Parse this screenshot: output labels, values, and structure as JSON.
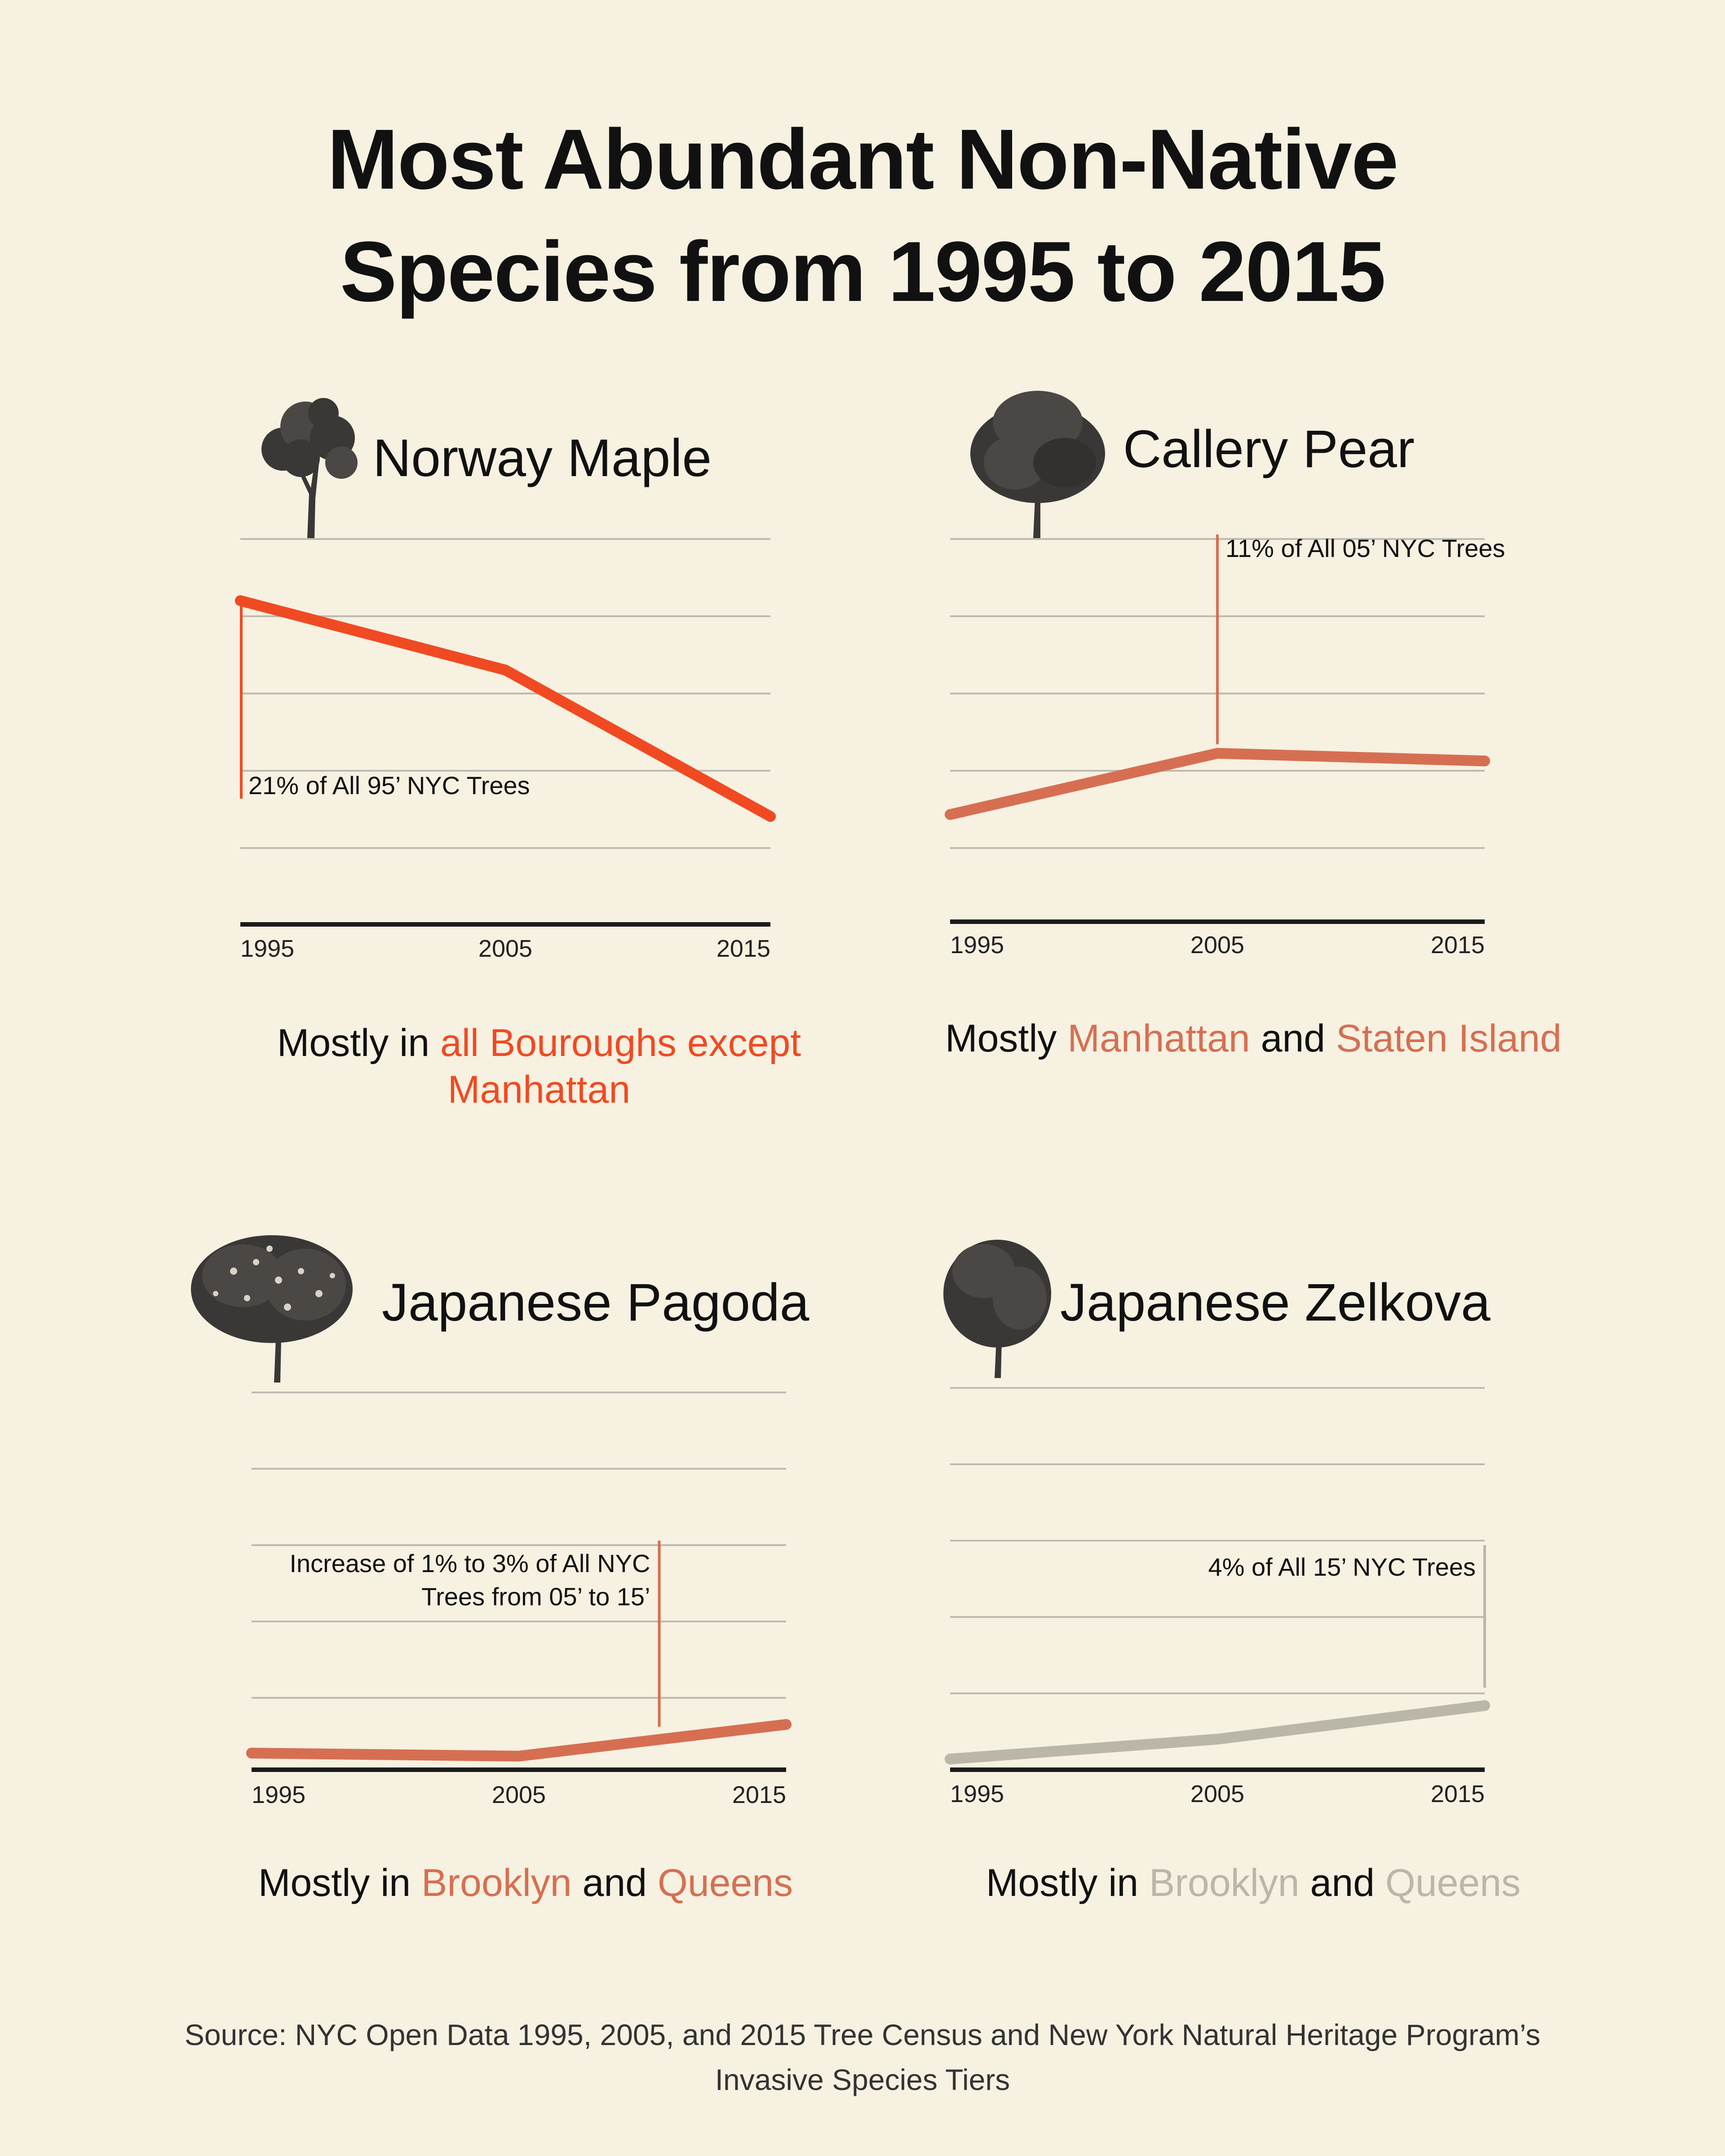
{
  "title": {
    "line1": "Most Abundant Non-Native",
    "line2": "Species from 1995 to 2015"
  },
  "source": {
    "line1": "Source: NYC Open Data 1995, 2005, and 2015 Tree Census and New York Natural Heritage Program’s",
    "line2": "Invasive Species Tiers"
  },
  "colors": {
    "background": "#f6f1e1",
    "grid": "#bdbab2",
    "axis": "#1a1a1a",
    "norway": "#f04a23",
    "callery": "#d66f52",
    "pagoda": "#d66f52",
    "zelkova": "#bab7a8",
    "tree": "#3a3836"
  },
  "panels": [
    {
      "id": "norway",
      "name": "Norway Maple",
      "icon": "tree-silhouette-icon",
      "summary": [
        {
          "text": "Mostly in ",
          "highlight": false
        },
        {
          "text": "all Bouroughs except Manhattan",
          "highlight": true
        }
      ]
    },
    {
      "id": "callery",
      "name": "Callery Pear",
      "icon": "tree-silhouette-icon",
      "summary": [
        {
          "text": "Mostly ",
          "highlight": false
        },
        {
          "text": "Manhattan",
          "highlight": true
        },
        {
          "text": " and ",
          "highlight": false
        },
        {
          "text": "Staten Island",
          "highlight": true
        }
      ]
    },
    {
      "id": "pagoda",
      "name": "Japanese Pagoda",
      "icon": "tree-silhouette-icon",
      "summary": [
        {
          "text": "Mostly in ",
          "highlight": false
        },
        {
          "text": "Brooklyn",
          "highlight": true
        },
        {
          "text": " and ",
          "highlight": false
        },
        {
          "text": "Queens",
          "highlight": true
        }
      ]
    },
    {
      "id": "zelkova",
      "name": "Japanese Zelkova",
      "icon": "tree-silhouette-icon",
      "summary": [
        {
          "text": "Mostly in ",
          "highlight": false
        },
        {
          "text": "Brooklyn",
          "highlight": true
        },
        {
          "text": " and ",
          "highlight": false
        },
        {
          "text": "Queens",
          "highlight": true
        }
      ]
    }
  ],
  "chart_data": [
    {
      "type": "line",
      "title": "Norway Maple",
      "x": [
        "1995",
        "2005",
        "2015"
      ],
      "series": [
        {
          "values": [
            21,
            16.5,
            7
          ]
        }
      ],
      "ylim": [
        0,
        25
      ],
      "grid": true,
      "annotation": {
        "text": "21% of All 95’ NYC Trees",
        "x": "1995"
      }
    },
    {
      "type": "line",
      "title": "Callery Pear",
      "x": [
        "1995",
        "2005",
        "2015"
      ],
      "series": [
        {
          "values": [
            7,
            11,
            10.5
          ]
        }
      ],
      "ylim": [
        0,
        25
      ],
      "grid": true,
      "annotation": {
        "text": "11% of All 05’ NYC Trees",
        "x": "2005"
      }
    },
    {
      "type": "line",
      "title": "Japanese Pagoda",
      "x": [
        "1995",
        "2005",
        "2015"
      ],
      "series": [
        {
          "values": [
            1.1,
            0.9,
            3
          ]
        }
      ],
      "ylim": [
        0,
        25
      ],
      "grid": true,
      "annotation": {
        "lines": [
          "Increase of 1% to 3% of All NYC",
          "Trees from 05’ to 15’"
        ],
        "x": "2010"
      }
    },
    {
      "type": "line",
      "title": "Japanese Zelkova",
      "x": [
        "1995",
        "2005",
        "2015"
      ],
      "series": [
        {
          "values": [
            0.7,
            2,
            4.2
          ]
        }
      ],
      "ylim": [
        0,
        25
      ],
      "grid": true,
      "annotation": {
        "text": "4% of All 15’ NYC Trees",
        "x": "2015"
      }
    }
  ]
}
